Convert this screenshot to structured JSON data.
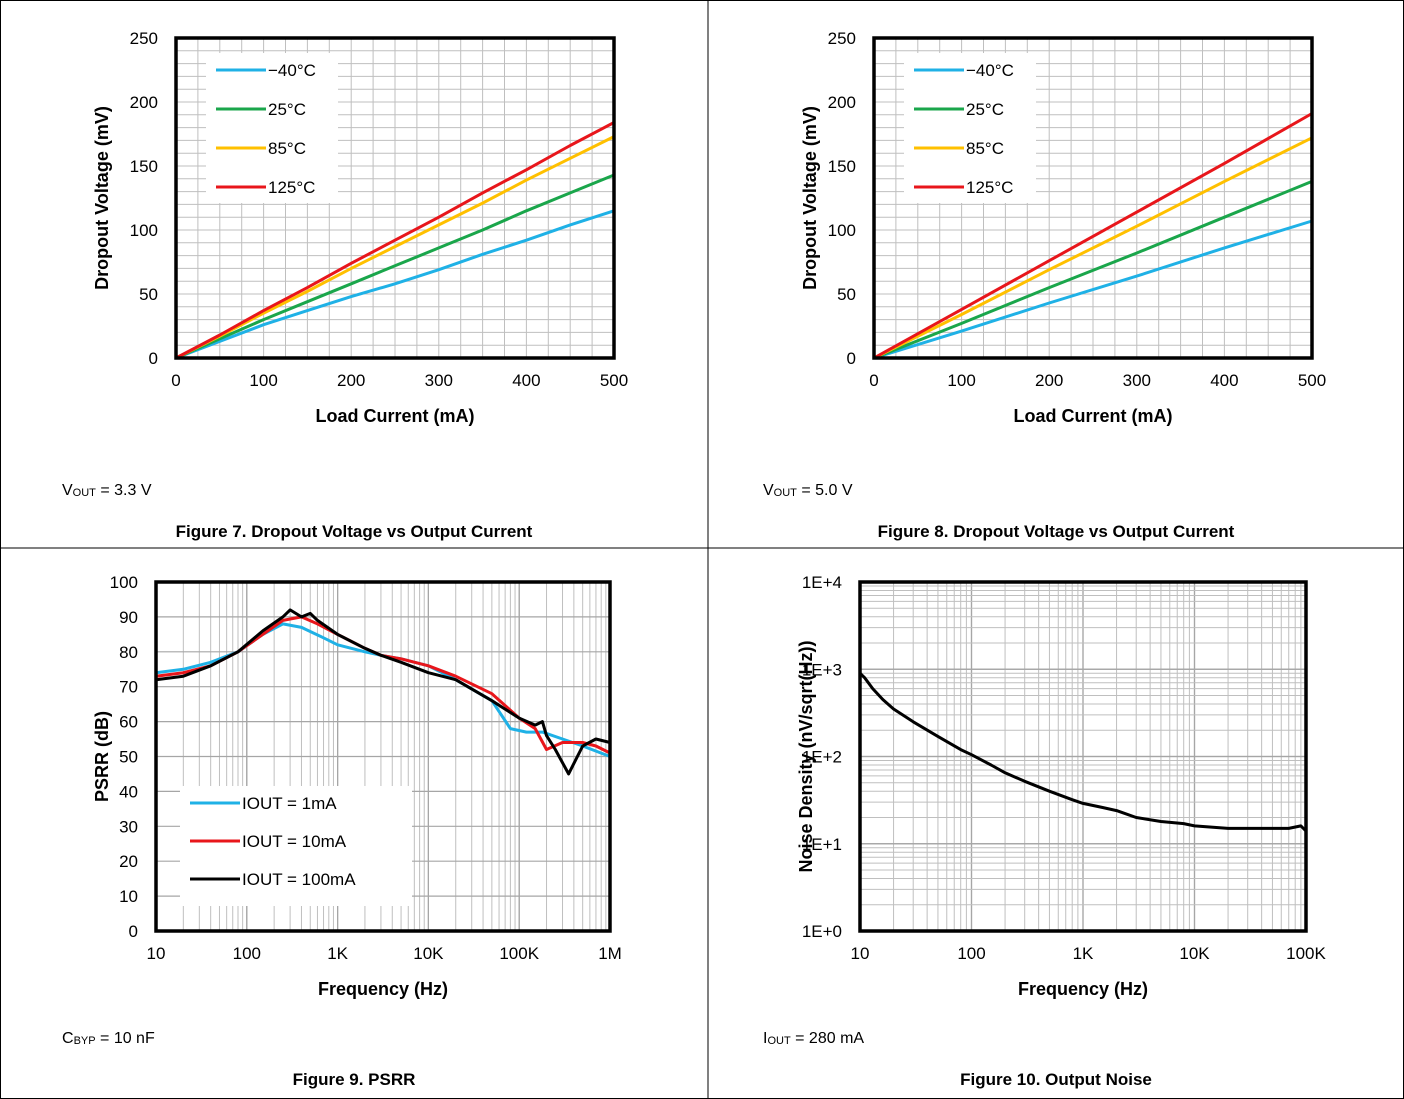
{
  "panels": [
    {
      "caption": "Figure 7. Dropout Voltage vs Output Current",
      "condition": {
        "prefix": "V",
        "sub": "OUT",
        "suffix": " = 3.3 V"
      }
    },
    {
      "caption": "Figure 8. Dropout Voltage vs Output Current",
      "condition": {
        "prefix": "V",
        "sub": "OUT",
        "suffix": " = 5.0 V"
      }
    },
    {
      "caption": "Figure 9. PSRR",
      "condition": {
        "prefix": "C",
        "sub": "BYP",
        "suffix": " = 10 nF"
      }
    },
    {
      "caption": "Figure 10. Output Noise",
      "condition": {
        "prefix": "I",
        "sub": "OUT",
        "suffix": " = 280 mA"
      }
    }
  ],
  "chart_data": [
    {
      "type": "line",
      "xlabel": "Load Current (mA)",
      "ylabel": "Dropout Voltage (mV)",
      "xlim": [
        0,
        500
      ],
      "ylim": [
        0,
        250
      ],
      "xticks": [
        0,
        100,
        200,
        300,
        400,
        500
      ],
      "yticks": [
        0,
        50,
        100,
        150,
        200,
        250
      ],
      "grid": true,
      "legend": "top-left",
      "series": [
        {
          "name": "−40°C",
          "color": "#1fb1e6",
          "x": [
            0,
            50,
            100,
            150,
            200,
            250,
            300,
            350,
            400,
            450,
            500
          ],
          "y": [
            0,
            13,
            26,
            37,
            48,
            58,
            69,
            81,
            92,
            104,
            115
          ]
        },
        {
          "name": "25°C",
          "color": "#1aa64b",
          "x": [
            0,
            50,
            100,
            150,
            200,
            250,
            300,
            350,
            400,
            450,
            500
          ],
          "y": [
            0,
            15,
            30,
            44,
            58,
            72,
            86,
            100,
            115,
            129,
            143
          ]
        },
        {
          "name": "85°C",
          "color": "#ffc000",
          "x": [
            0,
            50,
            100,
            150,
            200,
            250,
            300,
            350,
            400,
            450,
            500
          ],
          "y": [
            0,
            17,
            35,
            52,
            70,
            87,
            104,
            121,
            139,
            156,
            173
          ]
        },
        {
          "name": "125°C",
          "color": "#e8161b",
          "x": [
            0,
            50,
            100,
            150,
            200,
            250,
            300,
            350,
            400,
            450,
            500
          ],
          "y": [
            0,
            18,
            37,
            55,
            74,
            92,
            110,
            129,
            147,
            166,
            184
          ]
        }
      ]
    },
    {
      "type": "line",
      "xlabel": "Load Current (mA)",
      "ylabel": "Dropout Voltage (mV)",
      "xlim": [
        0,
        500
      ],
      "ylim": [
        0,
        250
      ],
      "xticks": [
        0,
        100,
        200,
        300,
        400,
        500
      ],
      "yticks": [
        0,
        50,
        100,
        150,
        200,
        250
      ],
      "grid": true,
      "legend": "top-left",
      "series": [
        {
          "name": "−40°C",
          "color": "#1fb1e6",
          "x": [
            0,
            100,
            200,
            300,
            400,
            500
          ],
          "y": [
            0,
            21,
            43,
            64,
            86,
            107
          ]
        },
        {
          "name": "25°C",
          "color": "#1aa64b",
          "x": [
            0,
            100,
            200,
            300,
            400,
            500
          ],
          "y": [
            0,
            27,
            55,
            82,
            110,
            138
          ]
        },
        {
          "name": "85°C",
          "color": "#ffc000",
          "x": [
            0,
            100,
            200,
            300,
            400,
            500
          ],
          "y": [
            0,
            34,
            69,
            103,
            138,
            172
          ]
        },
        {
          "name": "125°C",
          "color": "#e8161b",
          "x": [
            0,
            100,
            200,
            300,
            400,
            500
          ],
          "y": [
            0,
            38,
            76,
            114,
            152,
            191
          ]
        }
      ]
    },
    {
      "type": "line",
      "xlabel": "Frequency (Hz)",
      "ylabel": "PSRR (dB)",
      "xscale": "log",
      "xlim": [
        10,
        1000000
      ],
      "ylim": [
        0,
        100
      ],
      "xticks": [
        10,
        100,
        1000,
        10000,
        100000,
        1000000
      ],
      "xtick_labels": [
        "10",
        "100",
        "1K",
        "10K",
        "100K",
        "1M"
      ],
      "yticks": [
        0,
        10,
        20,
        30,
        40,
        50,
        60,
        70,
        80,
        90,
        100
      ],
      "grid": true,
      "legend": "bottom-left",
      "series": [
        {
          "name": "IOUT = 1mA",
          "color": "#1fb1e6",
          "x": [
            10,
            20,
            40,
            80,
            150,
            250,
            400,
            700,
            1000,
            2000,
            3000,
            5000,
            10000,
            20000,
            50000,
            80000,
            120000,
            180000,
            300000,
            500000,
            1000000
          ],
          "y": [
            74,
            75,
            77,
            80,
            85,
            88,
            87,
            84,
            82,
            80,
            79,
            78,
            76,
            72,
            66,
            58,
            57,
            57,
            55,
            53,
            50
          ]
        },
        {
          "name": "IOUT = 10mA",
          "color": "#e8161b",
          "x": [
            10,
            20,
            40,
            80,
            150,
            250,
            400,
            600,
            1000,
            2000,
            3000,
            5000,
            10000,
            20000,
            50000,
            100000,
            150000,
            200000,
            300000,
            500000,
            700000,
            1000000
          ],
          "y": [
            73,
            74,
            76,
            80,
            85,
            89,
            90,
            88,
            85,
            81,
            79,
            78,
            76,
            73,
            68,
            61,
            58,
            52,
            54,
            54,
            53,
            51
          ]
        },
        {
          "name": "IOUT = 100mA",
          "color": "#000000",
          "x": [
            10,
            20,
            40,
            80,
            150,
            250,
            300,
            400,
            500,
            600,
            1000,
            2000,
            3000,
            5000,
            10000,
            20000,
            50000,
            100000,
            150000,
            180000,
            200000,
            250000,
            350000,
            500000,
            700000,
            1000000
          ],
          "y": [
            72,
            73,
            76,
            80,
            86,
            90,
            92,
            90,
            91,
            89,
            85,
            81,
            79,
            77,
            74,
            72,
            66,
            61,
            59,
            60,
            56,
            52,
            45,
            53,
            55,
            54
          ]
        }
      ]
    },
    {
      "type": "line",
      "xlabel": "Frequency (Hz)",
      "ylabel": "Noise Density (nV/sqrt(Hz))",
      "xscale": "log",
      "yscale": "log",
      "xlim": [
        10,
        100000
      ],
      "ylim": [
        1,
        10000
      ],
      "xticks": [
        10,
        100,
        1000,
        10000,
        100000
      ],
      "xtick_labels": [
        "10",
        "100",
        "1K",
        "10K",
        "100K"
      ],
      "yticks": [
        1,
        10,
        100,
        1000,
        10000
      ],
      "ytick_labels": [
        "1E+0",
        "1E+1",
        "1E+2",
        "1E+3",
        "1E+4"
      ],
      "grid": true,
      "legend": "none",
      "series": [
        {
          "color": "#000000",
          "x": [
            10,
            11,
            13,
            16,
            20,
            30,
            50,
            80,
            100,
            150,
            200,
            300,
            500,
            800,
            1000,
            1500,
            2000,
            3000,
            5000,
            8000,
            10000,
            20000,
            50000,
            70000,
            90000,
            100000
          ],
          "y": [
            900,
            800,
            600,
            450,
            350,
            250,
            170,
            120,
            105,
            80,
            65,
            52,
            40,
            32,
            29,
            26,
            24,
            20,
            18,
            17,
            16,
            15,
            15,
            15,
            16,
            14
          ]
        }
      ]
    }
  ]
}
